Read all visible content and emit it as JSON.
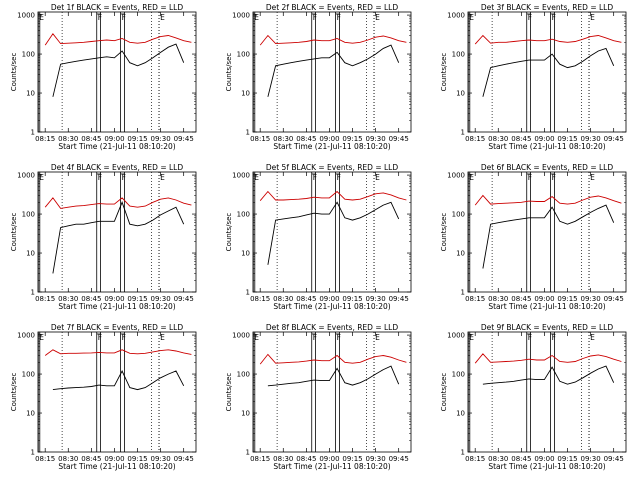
{
  "colors": {
    "events": "#000000",
    "lld": "#cc0000",
    "axis": "#000000",
    "background": "#ffffff"
  },
  "common": {
    "ylabel": "Counts/sec",
    "xlabel": "Start Time (21-Jul-11 08:10:20)",
    "xticks": [
      "08:15",
      "08:30",
      "08:45",
      "09:00",
      "09:15",
      "09:30",
      "09:45"
    ],
    "xtick_minutes": [
      15,
      30,
      45,
      60,
      75,
      90,
      105
    ],
    "yticks": [
      "1",
      "10",
      "100",
      "1000"
    ],
    "ytick_values": [
      1,
      10,
      100,
      1000
    ],
    "xlim_minutes": [
      10.33,
      113
    ],
    "ylim": [
      1,
      1200
    ],
    "yscale": "log",
    "interval_labels": [
      "E",
      "F",
      "F",
      "E"
    ]
  },
  "chart_data": [
    {
      "type": "line",
      "title": "Det 1f BLACK = Events, RED = LLD",
      "xlabel": "Start Time (21-Jul-11 08:10:20)",
      "ylabel": "Counts/sec",
      "x": [
        15,
        20,
        25,
        30,
        35,
        40,
        45,
        50,
        55,
        60,
        65,
        70,
        75,
        80,
        85,
        90,
        95,
        100,
        105,
        110
      ],
      "series": [
        {
          "values": [
            170,
            330,
            185,
            190,
            195,
            200,
            210,
            220,
            230,
            220,
            250,
            200,
            190,
            200,
            240,
            280,
            300,
            260,
            220,
            200
          ]
        },
        {
          "values": [
            null,
            8,
            55,
            60,
            65,
            70,
            75,
            80,
            85,
            80,
            120,
            60,
            50,
            60,
            80,
            110,
            150,
            180,
            60,
            null
          ]
        }
      ]
    },
    {
      "type": "line",
      "title": "Det 2f BLACK = Events, RED = LLD",
      "xlabel": "Start Time (21-Jul-11 08:10:20)",
      "ylabel": "Counts/sec",
      "x": [
        15,
        20,
        25,
        30,
        35,
        40,
        45,
        50,
        55,
        60,
        65,
        70,
        75,
        80,
        85,
        90,
        95,
        100,
        105,
        110
      ],
      "series": [
        {
          "values": [
            170,
            300,
            185,
            190,
            195,
            200,
            210,
            230,
            220,
            220,
            250,
            200,
            190,
            200,
            230,
            270,
            290,
            260,
            220,
            200
          ]
        },
        {
          "values": [
            null,
            8,
            50,
            55,
            60,
            65,
            70,
            75,
            80,
            80,
            110,
            60,
            50,
            60,
            75,
            100,
            140,
            170,
            60,
            null
          ]
        }
      ]
    },
    {
      "type": "line",
      "title": "Det 3f BLACK = Events, RED = LLD",
      "xlabel": "Start Time (21-Jul-11 08:10:20)",
      "ylabel": "Counts/sec",
      "x": [
        15,
        20,
        25,
        30,
        35,
        40,
        45,
        50,
        55,
        60,
        65,
        70,
        75,
        80,
        85,
        90,
        95,
        100,
        105,
        110
      ],
      "series": [
        {
          "values": [
            180,
            300,
            190,
            200,
            200,
            210,
            220,
            230,
            220,
            220,
            240,
            210,
            200,
            210,
            240,
            280,
            300,
            260,
            220,
            200
          ]
        },
        {
          "values": [
            null,
            8,
            45,
            50,
            55,
            60,
            65,
            70,
            70,
            70,
            100,
            55,
            45,
            50,
            65,
            90,
            120,
            140,
            50,
            null
          ]
        }
      ]
    },
    {
      "type": "line",
      "title": "Det 4f BLACK = Events, RED = LLD",
      "xlabel": "Start Time (21-Jul-11 08:10:20)",
      "ylabel": "Counts/sec",
      "x": [
        15,
        20,
        25,
        30,
        35,
        40,
        45,
        50,
        55,
        60,
        65,
        70,
        75,
        80,
        85,
        90,
        95,
        100,
        105,
        110
      ],
      "series": [
        {
          "values": [
            150,
            260,
            140,
            150,
            160,
            165,
            175,
            185,
            180,
            180,
            260,
            160,
            150,
            160,
            200,
            240,
            260,
            230,
            190,
            170
          ]
        },
        {
          "values": [
            null,
            3,
            45,
            50,
            55,
            55,
            60,
            65,
            65,
            65,
            200,
            55,
            50,
            55,
            70,
            95,
            120,
            150,
            55,
            null
          ]
        }
      ]
    },
    {
      "type": "line",
      "title": "Det 5f BLACK = Events, RED = LLD",
      "xlabel": "Start Time (21-Jul-11 08:10:20)",
      "ylabel": "Counts/sec",
      "x": [
        15,
        20,
        25,
        30,
        35,
        40,
        45,
        50,
        55,
        60,
        65,
        70,
        75,
        80,
        85,
        90,
        95,
        100,
        105,
        110
      ],
      "series": [
        {
          "values": [
            220,
            380,
            230,
            230,
            235,
            240,
            250,
            270,
            260,
            260,
            380,
            240,
            230,
            240,
            280,
            330,
            350,
            310,
            260,
            230
          ]
        },
        {
          "values": [
            null,
            5,
            70,
            75,
            80,
            85,
            95,
            105,
            100,
            100,
            200,
            80,
            70,
            80,
            100,
            130,
            170,
            200,
            75,
            null
          ]
        }
      ]
    },
    {
      "type": "line",
      "title": "Det 6f BLACK = Events, RED = LLD",
      "xlabel": "Start Time (21-Jul-11 08:10:20)",
      "ylabel": "Counts/sec",
      "x": [
        15,
        20,
        25,
        30,
        35,
        40,
        45,
        50,
        55,
        60,
        65,
        70,
        75,
        80,
        85,
        90,
        95,
        100,
        105,
        110
      ],
      "series": [
        {
          "values": [
            170,
            300,
            180,
            185,
            190,
            195,
            200,
            215,
            210,
            210,
            280,
            190,
            180,
            190,
            230,
            270,
            290,
            260,
            220,
            190
          ]
        },
        {
          "values": [
            null,
            4,
            55,
            60,
            65,
            70,
            75,
            80,
            80,
            80,
            150,
            65,
            55,
            65,
            85,
            110,
            140,
            170,
            60,
            null
          ]
        }
      ]
    },
    {
      "type": "line",
      "title": "Det 7f BLACK = Events, RED = LLD",
      "xlabel": "Start Time (21-Jul-11 08:10:20)",
      "ylabel": "Counts/sec",
      "x": [
        15,
        20,
        25,
        30,
        35,
        40,
        45,
        50,
        55,
        60,
        65,
        70,
        75,
        80,
        85,
        90,
        95,
        100,
        105,
        110
      ],
      "series": [
        {
          "values": [
            300,
            420,
            330,
            340,
            340,
            345,
            350,
            360,
            350,
            350,
            420,
            340,
            330,
            340,
            370,
            400,
            420,
            390,
            350,
            320
          ]
        },
        {
          "values": [
            null,
            40,
            42,
            44,
            45,
            46,
            48,
            52,
            50,
            50,
            120,
            45,
            40,
            45,
            60,
            80,
            100,
            120,
            50,
            null
          ]
        }
      ]
    },
    {
      "type": "line",
      "title": "Det 8f BLACK = Events, RED = LLD",
      "xlabel": "Start Time (21-Jul-11 08:10:20)",
      "ylabel": "Counts/sec",
      "x": [
        15,
        20,
        25,
        30,
        35,
        40,
        45,
        50,
        55,
        60,
        65,
        70,
        75,
        80,
        85,
        90,
        95,
        100,
        105,
        110
      ],
      "series": [
        {
          "values": [
            180,
            320,
            190,
            195,
            200,
            205,
            215,
            230,
            220,
            220,
            300,
            200,
            190,
            200,
            240,
            280,
            300,
            270,
            230,
            200
          ]
        },
        {
          "values": [
            null,
            50,
            52,
            55,
            58,
            60,
            65,
            70,
            68,
            68,
            140,
            60,
            52,
            60,
            75,
            100,
            130,
            160,
            55,
            null
          ]
        }
      ]
    },
    {
      "type": "line",
      "title": "Det 9f BLACK = Events, RED = LLD",
      "xlabel": "Start Time (21-Jul-11 08:10:20)",
      "ylabel": "Counts/sec",
      "x": [
        15,
        20,
        25,
        30,
        35,
        40,
        45,
        50,
        55,
        60,
        65,
        70,
        75,
        80,
        85,
        90,
        95,
        100,
        105,
        110
      ],
      "series": [
        {
          "values": [
            190,
            330,
            200,
            205,
            210,
            215,
            225,
            240,
            230,
            230,
            300,
            210,
            200,
            210,
            250,
            290,
            310,
            280,
            240,
            210
          ]
        },
        {
          "values": [
            null,
            55,
            58,
            60,
            62,
            65,
            70,
            75,
            72,
            72,
            150,
            65,
            55,
            62,
            80,
            105,
            135,
            160,
            60,
            null
          ]
        }
      ]
    }
  ],
  "intervals": [
    {
      "label_index": 0,
      "type": "solid",
      "start": 10.5,
      "end": 11.5
    },
    {
      "label_index": 1,
      "type": "solid",
      "start": 48.5,
      "end": 51
    },
    {
      "label_index": 2,
      "type": "solid",
      "start": 64,
      "end": 66.5
    },
    {
      "label_index": 3,
      "type": "dotted",
      "start": 89,
      "end": 89
    }
  ],
  "extra_dotted": [
    26,
    84
  ]
}
